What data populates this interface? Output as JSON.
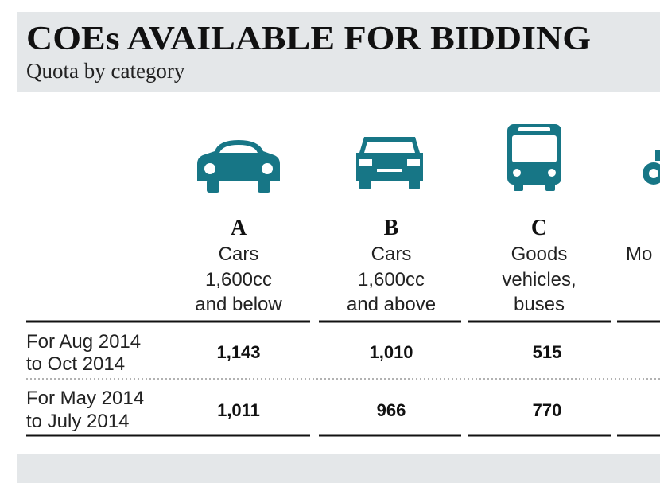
{
  "header": {
    "title": "COEs AVAILABLE FOR BIDDING",
    "subtitle": "Quota by category"
  },
  "table": {
    "columns": [
      {
        "letter": "A",
        "lines": [
          "Cars",
          "1,600cc",
          "and below"
        ]
      },
      {
        "letter": "B",
        "lines": [
          "Cars",
          "1,600cc",
          "and above"
        ]
      },
      {
        "letter": "C",
        "lines": [
          "Goods",
          "vehicles,",
          "buses"
        ]
      },
      {
        "lines": [
          "Mo"
        ]
      }
    ],
    "rows": [
      {
        "label": [
          "For Aug 2014",
          "to Oct 2014"
        ],
        "values": [
          "1,143",
          "1,010",
          "515"
        ]
      },
      {
        "label": [
          "For May 2014",
          "to July 2014"
        ],
        "values": [
          "1,011",
          "966",
          "770"
        ]
      }
    ]
  }
}
